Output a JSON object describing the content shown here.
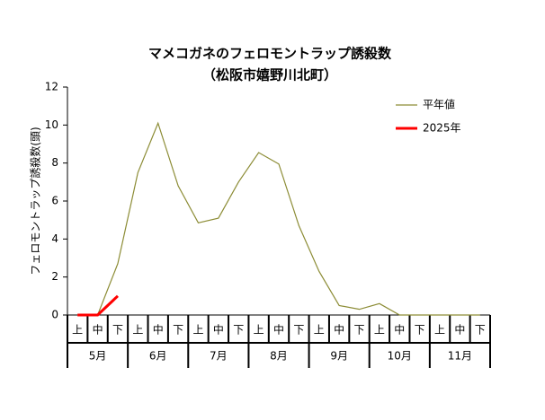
{
  "chart_data": {
    "type": "line",
    "title": "マメコガネのフェロモントラップ誘殺数",
    "subtitle": "（松阪市嬉野川北町）",
    "y_label": "フェロモントラップ誘殺数(頭)",
    "categories": [
      "上",
      "中",
      "下",
      "上",
      "中",
      "下",
      "上",
      "中",
      "下",
      "上",
      "中",
      "下",
      "上",
      "中",
      "下",
      "上",
      "中",
      "下",
      "上",
      "中",
      "下"
    ],
    "months": [
      "5月",
      "6月",
      "7月",
      "8月",
      "9月",
      "10月",
      "11月"
    ],
    "series": [
      {
        "name": "平年値",
        "color": "#8c8c35",
        "values": [
          0,
          0,
          2.7,
          7.5,
          10.1,
          6.8,
          4.85,
          5.1,
          7.0,
          8.55,
          7.95,
          4.7,
          2.3,
          0.5,
          0.3,
          0.6,
          0,
          0,
          0,
          0,
          0
        ]
      },
      {
        "name": "2025年",
        "color": "#ff0000",
        "values": [
          0,
          0,
          1.0,
          null,
          null,
          null,
          null,
          null,
          null,
          null,
          null,
          null,
          null,
          null,
          null,
          null,
          null,
          null,
          null,
          null,
          null
        ]
      }
    ],
    "ylim": [
      0,
      12
    ],
    "yticks": [
      0,
      2,
      4,
      6,
      8,
      10,
      12
    ],
    "legend": "top-right",
    "grid": false
  }
}
